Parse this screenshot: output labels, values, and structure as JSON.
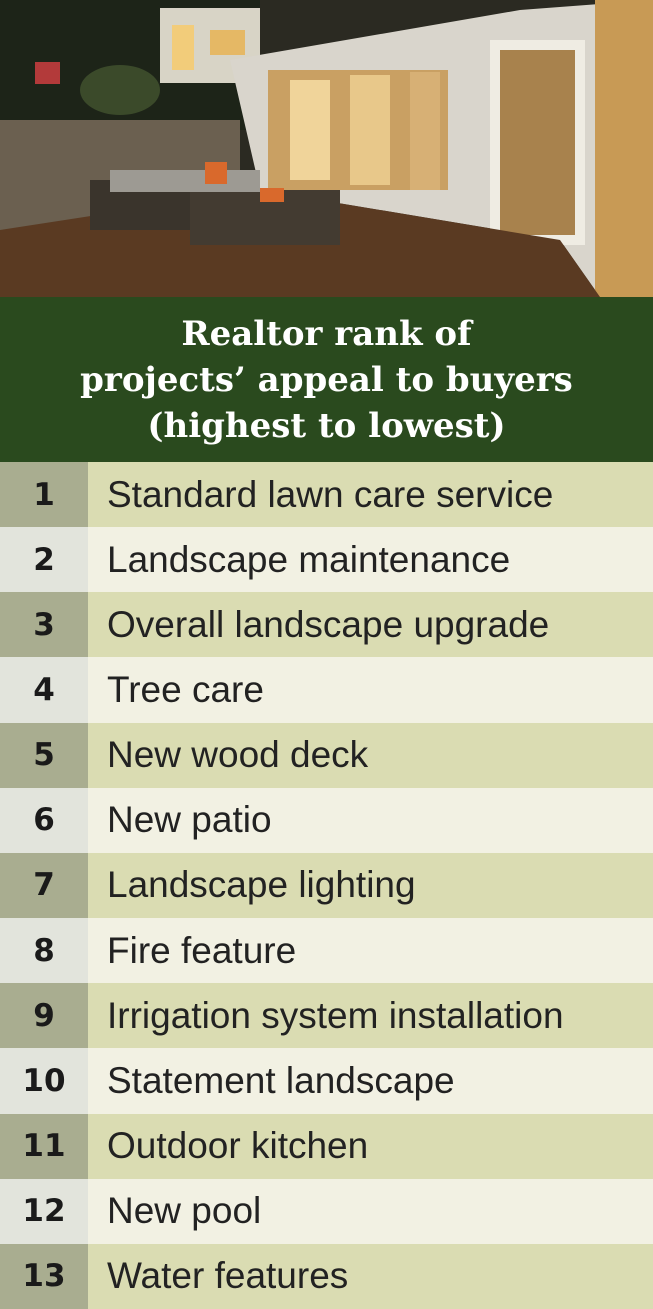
{
  "header": {
    "title_lines": [
      "Realtor rank of",
      "projects’ appeal to buyers",
      "(highest to lowest)"
    ]
  },
  "table": {
    "rows": [
      [
        "1",
        "Standard lawn care service"
      ],
      [
        "2",
        "Landscape maintenance"
      ],
      [
        "3",
        "Overall landscape upgrade"
      ],
      [
        "4",
        "Tree care"
      ],
      [
        "5",
        "New wood deck"
      ],
      [
        "6",
        "New patio"
      ],
      [
        "7",
        "Landscape lighting"
      ],
      [
        "8",
        "Fire feature"
      ],
      [
        "9",
        "Irrigation system installation"
      ],
      [
        "10",
        "Statement landscape"
      ],
      [
        "11",
        "Outdoor kitchen"
      ],
      [
        "12",
        "New pool"
      ],
      [
        "13",
        "Water features"
      ]
    ]
  }
}
